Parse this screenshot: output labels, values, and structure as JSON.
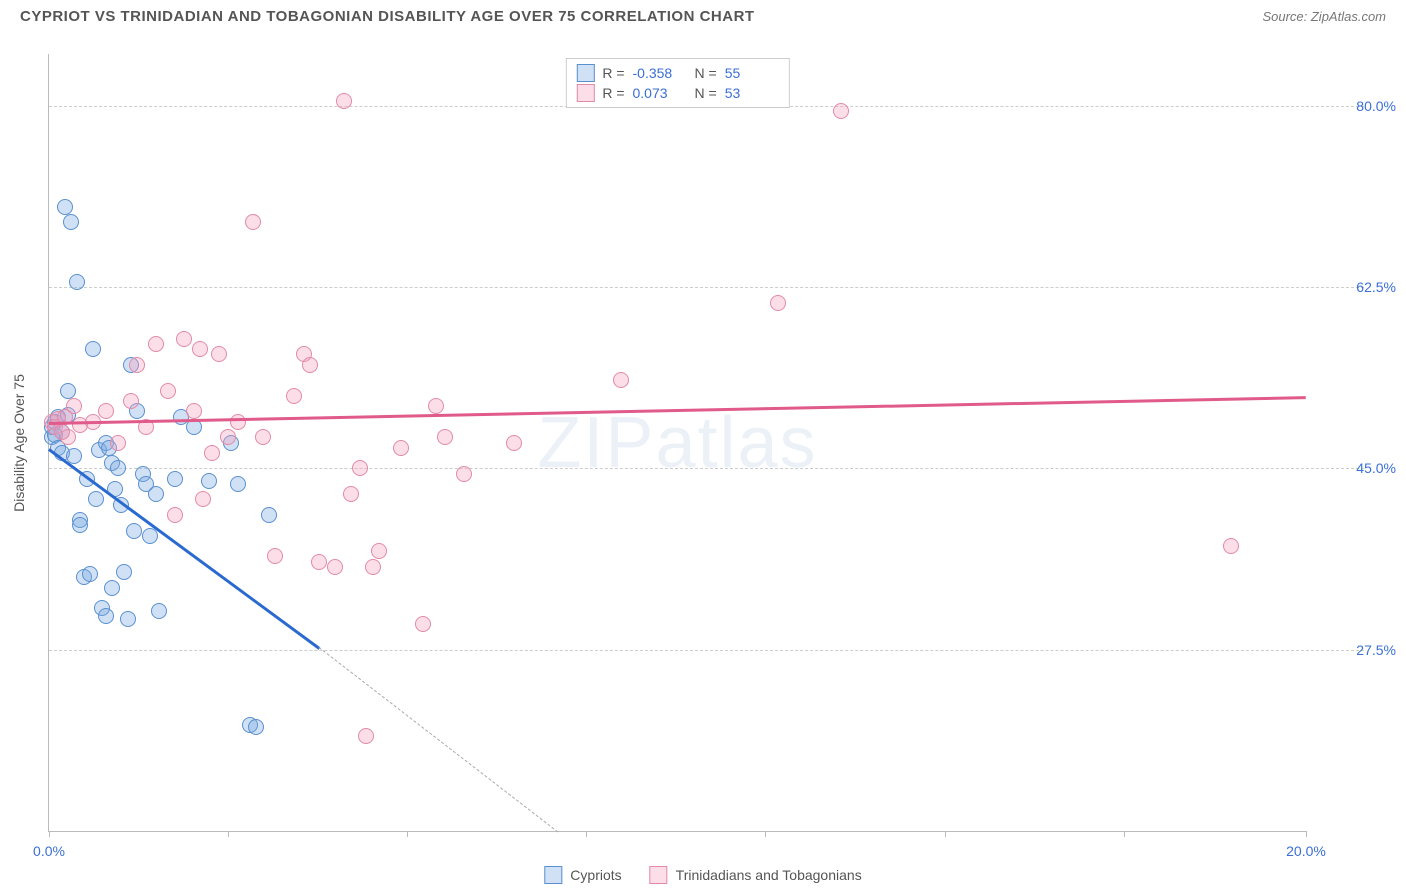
{
  "header": {
    "title": "CYPRIOT VS TRINIDADIAN AND TOBAGONIAN DISABILITY AGE OVER 75 CORRELATION CHART",
    "source_label": "Source: ZipAtlas.com"
  },
  "watermark": {
    "part1": "ZIP",
    "part2": "atlas"
  },
  "chart": {
    "type": "scatter",
    "y_axis_title": "Disability Age Over 75",
    "background_color": "#ffffff",
    "grid_color": "#cccccc",
    "axis_color": "#bbbbbb",
    "tick_label_color": "#3b6fd6",
    "xlim": [
      0,
      20
    ],
    "ylim": [
      10,
      85
    ],
    "x_ticks": [
      0,
      2.85,
      5.7,
      8.55,
      11.4,
      14.25,
      17.1,
      20
    ],
    "x_tick_labels": {
      "0": "0.0%",
      "20": "20.0%"
    },
    "y_gridlines": [
      27.5,
      45.0,
      62.5,
      80.0
    ],
    "y_tick_labels": [
      "27.5%",
      "45.0%",
      "62.5%",
      "80.0%"
    ],
    "marker_radius": 8,
    "marker_border_width": 1.5,
    "series": [
      {
        "name": "Cypriots",
        "fill": "rgba(120,170,225,0.35)",
        "stroke": "#5a8fd0",
        "trend_color": "#2a6ad0",
        "R": "-0.358",
        "N": "55",
        "trend": {
          "x1": 0,
          "y1": 47.0,
          "x2": 4.3,
          "y2": 27.8,
          "dash_x2": 8.1,
          "dash_y2": 10
        },
        "points": [
          [
            0.05,
            49
          ],
          [
            0.05,
            48
          ],
          [
            0.1,
            49.5
          ],
          [
            0.1,
            48.2
          ],
          [
            0.15,
            50
          ],
          [
            0.15,
            47
          ],
          [
            0.2,
            46.5
          ],
          [
            0.2,
            48.5
          ],
          [
            0.25,
            70.2
          ],
          [
            0.3,
            50.2
          ],
          [
            0.3,
            52.5
          ],
          [
            0.35,
            68.8
          ],
          [
            0.4,
            46.2
          ],
          [
            0.45,
            63.0
          ],
          [
            0.5,
            40.0
          ],
          [
            0.5,
            39.5
          ],
          [
            0.55,
            34.5
          ],
          [
            0.6,
            44.0
          ],
          [
            0.65,
            34.8
          ],
          [
            0.7,
            56.5
          ],
          [
            0.75,
            42.0
          ],
          [
            0.8,
            46.8
          ],
          [
            0.85,
            31.5
          ],
          [
            0.9,
            47.5
          ],
          [
            0.9,
            30.8
          ],
          [
            0.95,
            47.0
          ],
          [
            1.0,
            33.5
          ],
          [
            1.0,
            45.5
          ],
          [
            1.05,
            43.0
          ],
          [
            1.1,
            45.0
          ],
          [
            1.15,
            41.5
          ],
          [
            1.2,
            35.0
          ],
          [
            1.25,
            30.5
          ],
          [
            1.3,
            55.0
          ],
          [
            1.35,
            39.0
          ],
          [
            1.4,
            50.5
          ],
          [
            1.5,
            44.5
          ],
          [
            1.55,
            43.5
          ],
          [
            1.6,
            38.5
          ],
          [
            1.7,
            42.5
          ],
          [
            1.75,
            31.2
          ],
          [
            2.0,
            44.0
          ],
          [
            2.1,
            50.0
          ],
          [
            2.3,
            49.0
          ],
          [
            2.55,
            43.8
          ],
          [
            2.9,
            47.5
          ],
          [
            3.0,
            43.5
          ],
          [
            3.2,
            20.2
          ],
          [
            3.3,
            20.0
          ],
          [
            3.5,
            40.5
          ]
        ]
      },
      {
        "name": "Trinidadians and Tobagonians",
        "fill": "rgba(245,160,190,0.35)",
        "stroke": "#e28aa8",
        "trend_color": "#e05a8a",
        "R": "0.073",
        "N": "53",
        "trend": {
          "x1": 0,
          "y1": 49.5,
          "x2": 20,
          "y2": 52.0
        },
        "points": [
          [
            0.05,
            49.5
          ],
          [
            0.1,
            49.0
          ],
          [
            0.15,
            49.8
          ],
          [
            0.2,
            48.5
          ],
          [
            0.25,
            50.0
          ],
          [
            0.3,
            48.0
          ],
          [
            0.4,
            51.0
          ],
          [
            0.5,
            49.2
          ],
          [
            0.7,
            49.5
          ],
          [
            0.9,
            50.5
          ],
          [
            1.1,
            47.5
          ],
          [
            1.3,
            51.5
          ],
          [
            1.4,
            55.0
          ],
          [
            1.55,
            49.0
          ],
          [
            1.7,
            57.0
          ],
          [
            1.9,
            52.5
          ],
          [
            2.0,
            40.5
          ],
          [
            2.15,
            57.5
          ],
          [
            2.3,
            50.5
          ],
          [
            2.4,
            56.5
          ],
          [
            2.45,
            42.0
          ],
          [
            2.6,
            46.5
          ],
          [
            2.7,
            56.0
          ],
          [
            2.85,
            48.0
          ],
          [
            3.0,
            49.5
          ],
          [
            3.25,
            68.8
          ],
          [
            3.4,
            48.0
          ],
          [
            3.6,
            36.5
          ],
          [
            3.9,
            52.0
          ],
          [
            4.05,
            56.0
          ],
          [
            4.15,
            55.0
          ],
          [
            4.3,
            36.0
          ],
          [
            4.55,
            35.5
          ],
          [
            4.7,
            80.5
          ],
          [
            4.8,
            42.5
          ],
          [
            4.95,
            45.0
          ],
          [
            5.05,
            19.2
          ],
          [
            5.15,
            35.5
          ],
          [
            5.25,
            37.0
          ],
          [
            5.6,
            47.0
          ],
          [
            5.95,
            30.0
          ],
          [
            6.15,
            51.0
          ],
          [
            6.3,
            48.0
          ],
          [
            6.6,
            44.5
          ],
          [
            7.4,
            47.5
          ],
          [
            9.1,
            53.5
          ],
          [
            11.6,
            61.0
          ],
          [
            12.6,
            79.5
          ],
          [
            18.8,
            37.5
          ]
        ]
      }
    ],
    "stat_box": {
      "R_label": "R =",
      "N_label": "N ="
    },
    "bottom_legend": true
  }
}
